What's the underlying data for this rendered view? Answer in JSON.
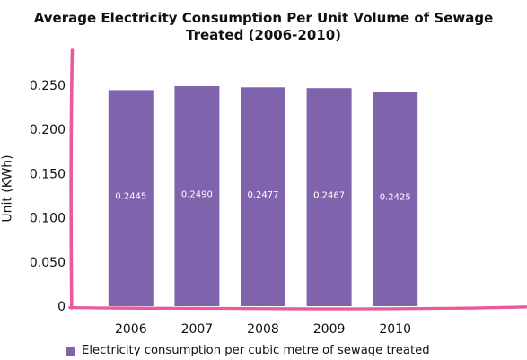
{
  "chart_data": {
    "type": "bar",
    "title": "Average Electricity Consumption Per Unit Volume of Sewage Treated  (2006-2010)",
    "ylabel": "Unit (KWh)",
    "xlabel": "",
    "categories": [
      "2006",
      "2007",
      "2008",
      "2009",
      "2010"
    ],
    "series": [
      {
        "name": "Electricity consumption per cubic metre of sewage treated",
        "values": [
          0.2445,
          0.249,
          0.2477,
          0.2467,
          0.2425
        ],
        "labels": [
          "0.2445",
          "0.2490",
          "0.2477",
          "0.2467",
          "0.2425"
        ]
      }
    ],
    "ylim": [
      0,
      0.25
    ],
    "yticks": [
      "0",
      "0.050",
      "0.100",
      "0.150",
      "0.200",
      "0.250"
    ],
    "grid": false,
    "legend": "bottom",
    "colors": {
      "bar": "#8063ad",
      "axis": "#e85a98"
    }
  }
}
